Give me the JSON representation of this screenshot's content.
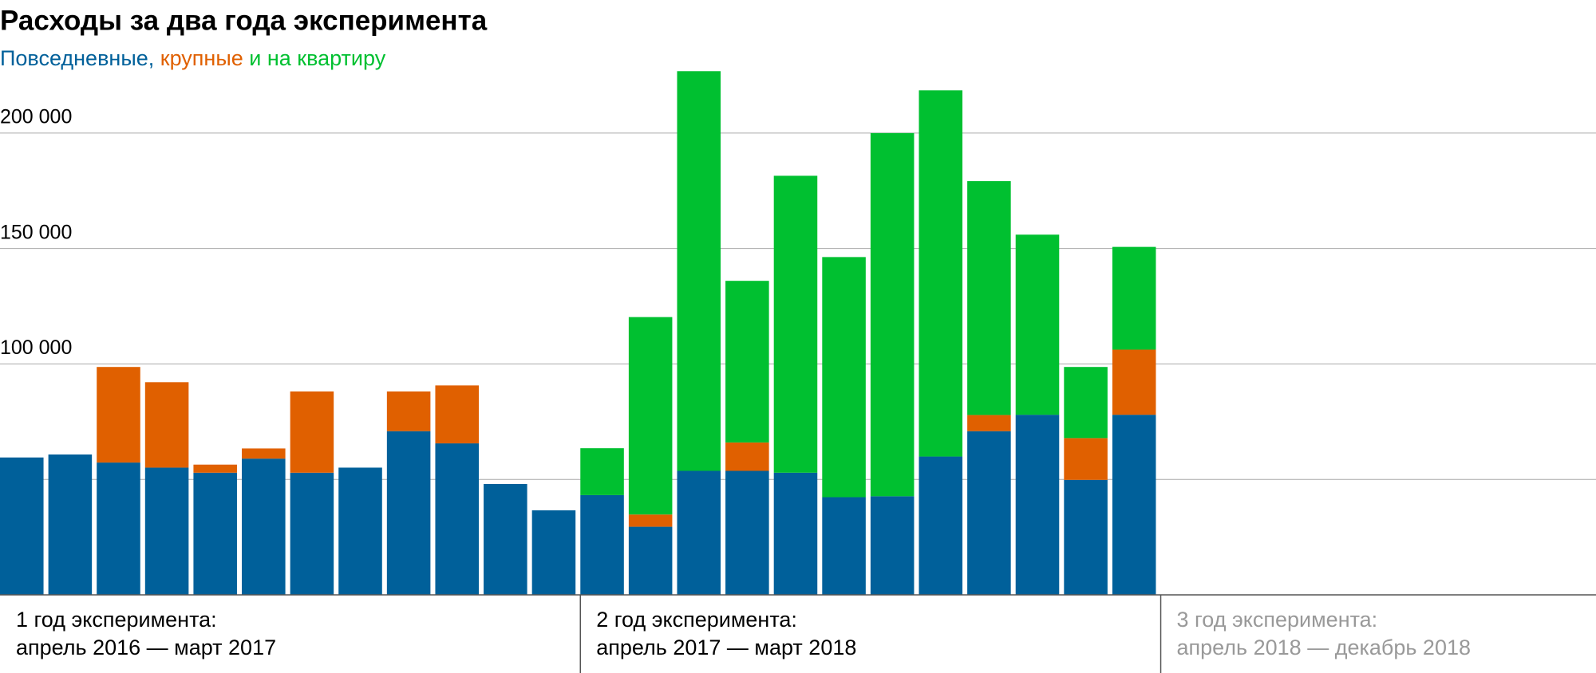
{
  "chart_data": {
    "type": "stacked-bar",
    "title": "Расходы за два года эксперимента",
    "subtitle_parts": [
      {
        "text": "Повседневные",
        "color": "#00609a"
      },
      {
        "text": ", ",
        "color": "#00609a"
      },
      {
        "text": "крупные",
        "color": "#e06000"
      },
      {
        "text": " и на квартиру",
        "color": "#00c030"
      }
    ],
    "categories": [
      null,
      null,
      null,
      null,
      null,
      null,
      null,
      null,
      null,
      null,
      null,
      null,
      null,
      null,
      null,
      null,
      null,
      null,
      null,
      null,
      null,
      null,
      null,
      null,
      null,
      null,
      null,
      null,
      null,
      null,
      null,
      null,
      null
    ],
    "series": [
      {
        "color": "#00609a",
        "values": [
          59500,
          60800,
          57300,
          55100,
          52900,
          59000,
          52900,
          55100,
          70900,
          65600,
          48000,
          36600,
          43200,
          29500,
          53700,
          53700,
          52900,
          42300,
          42700,
          59900,
          70900,
          78000,
          49800,
          78000,
          null,
          null,
          null,
          null,
          null,
          null,
          null,
          null,
          null
        ]
      },
      {
        "color": "#e06000",
        "values": [
          0,
          0,
          41400,
          37000,
          3500,
          4400,
          35200,
          0,
          17200,
          25100,
          0,
          0,
          0,
          5300,
          0,
          12300,
          0,
          0,
          0,
          0,
          7000,
          0,
          18100,
          28200,
          null,
          null,
          null,
          null,
          null,
          null,
          null,
          null,
          null
        ]
      },
      {
        "color": "#00c030",
        "values": [
          0,
          0,
          0,
          0,
          0,
          0,
          0,
          0,
          0,
          0,
          0,
          0,
          20300,
          85500,
          173100,
          70000,
          128600,
          104000,
          157300,
          158600,
          101300,
          78000,
          30800,
          44500,
          null,
          null,
          null,
          null,
          null,
          null,
          null,
          null,
          null
        ]
      }
    ],
    "ylim": [
      0,
      230000
    ],
    "yticks": [
      {
        "value": 50000,
        "label": null
      },
      {
        "value": 100000,
        "label": "100 000"
      },
      {
        "value": 150000,
        "label": "150 000"
      },
      {
        "value": 200000,
        "label": "200 000"
      }
    ],
    "grid": true,
    "periods": [
      {
        "line1": "1 год эксперимента:",
        "line2": "апрель 2016 — март 2017",
        "months": 12,
        "color": "#000000"
      },
      {
        "line1": "2 год эксперимента:",
        "line2": "апрель 2017 — март 2018",
        "months": 12,
        "color": "#000000"
      },
      {
        "line1": "3 год эксперимента:",
        "line2": "апрель 2018 — декабрь 2018",
        "months": 9,
        "color": "#999999"
      }
    ]
  }
}
